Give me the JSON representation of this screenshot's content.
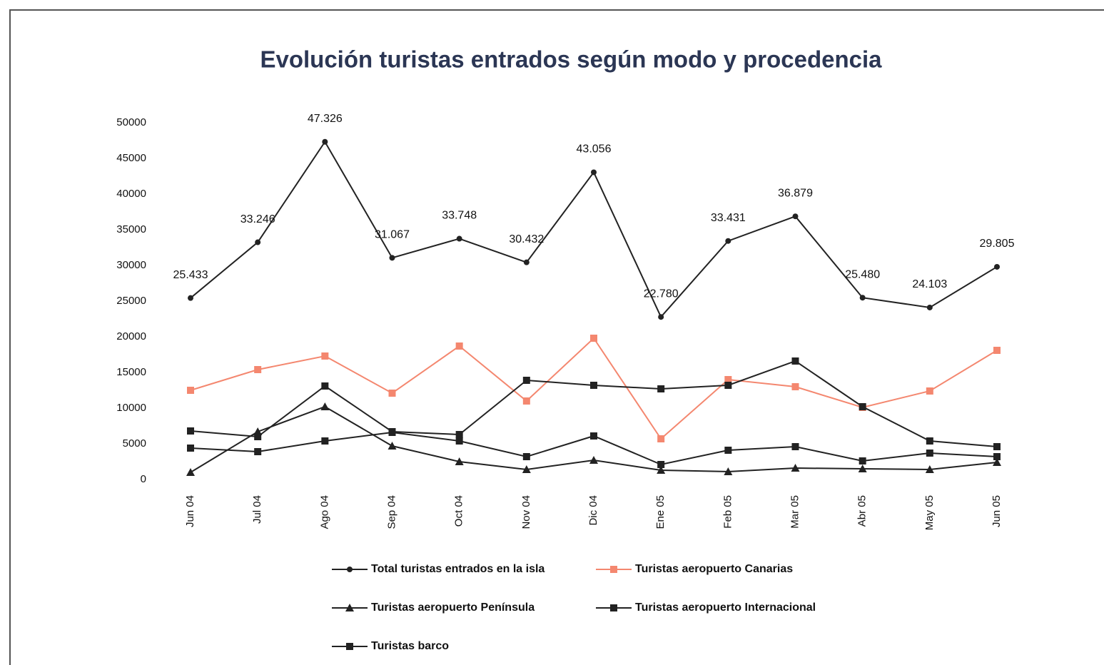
{
  "chart_data": {
    "type": "line",
    "title": "Evolución turistas entrados según modo y procedencia",
    "categories": [
      "Jun 04",
      "Jul 04",
      "Ago 04",
      "Sep 04",
      "Oct 04",
      "Nov 04",
      "Dic 04",
      "Ene 05",
      "Feb 05",
      "Mar 05",
      "Abr 05",
      "May 05",
      "Jun 05"
    ],
    "ylim": [
      0,
      50000
    ],
    "yticks": [
      0,
      5000,
      10000,
      15000,
      20000,
      25000,
      30000,
      35000,
      40000,
      45000,
      50000
    ],
    "grid": false,
    "legend": "bottom",
    "series": [
      {
        "name": "Total turistas entrados en la isla",
        "color": "#222222",
        "marker": "circle",
        "values": [
          25433,
          33246,
          47326,
          31067,
          33748,
          30432,
          43056,
          22780,
          33431,
          36879,
          25480,
          24103,
          29805
        ],
        "value_labels": [
          "25.433",
          "33.246",
          "47.326",
          "31.067",
          "33.748",
          "30.432",
          "43.056",
          "22.780",
          "33.431",
          "36.879",
          "25.480",
          "24.103",
          "29.805"
        ]
      },
      {
        "name": "Turistas aeropuerto Canarias",
        "color": "#f4876f",
        "marker": "square",
        "values": [
          12500,
          15400,
          17300,
          12100,
          18700,
          11000,
          19800,
          5700,
          14000,
          13000,
          10100,
          12400,
          18100
        ]
      },
      {
        "name": "Turistas aeropuerto Península",
        "color": "#222222",
        "marker": "triangle",
        "values": [
          1000,
          6700,
          10200,
          4700,
          2500,
          1400,
          2700,
          1300,
          1100,
          1600,
          1500,
          1400,
          2400
        ]
      },
      {
        "name": "Turistas aeropuerto Internacional",
        "color": "#222222",
        "marker": "square",
        "values": [
          6800,
          6000,
          13100,
          6700,
          6300,
          13900,
          13200,
          12700,
          13200,
          16600,
          10200,
          5400,
          4600
        ]
      },
      {
        "name": "Turistas barco",
        "color": "#222222",
        "marker": "square",
        "values": [
          4400,
          3900,
          5400,
          6600,
          5400,
          3200,
          6100,
          2100,
          4100,
          4600,
          2600,
          3700,
          3200
        ]
      }
    ]
  }
}
